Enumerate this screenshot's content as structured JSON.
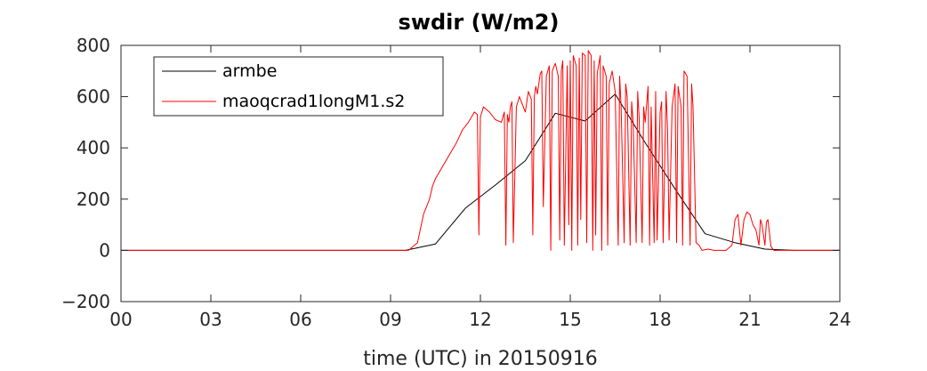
{
  "chart_data": {
    "type": "line",
    "title": "swdir  (W/m2)",
    "xlabel": "time (UTC) in 20150916",
    "ylabel": "",
    "xlim": [
      0,
      24
    ],
    "ylim": [
      -200,
      800
    ],
    "xticks": [
      0,
      3,
      6,
      9,
      12,
      15,
      18,
      21,
      24
    ],
    "xtick_labels": [
      "00",
      "03",
      "06",
      "09",
      "12",
      "15",
      "18",
      "21",
      "24"
    ],
    "yticks": [
      -200,
      0,
      200,
      400,
      600,
      800
    ],
    "ytick_labels": [
      "−200",
      "0",
      "200",
      "400",
      "600",
      "800"
    ],
    "grid": false,
    "legend_position": "top-left",
    "series": [
      {
        "name": "armbe",
        "color": "#000000",
        "x": [
          0,
          9.5,
          10.5,
          11.5,
          12.5,
          13.5,
          14.5,
          15.5,
          16.5,
          17.5,
          18.5,
          19.5,
          20.5,
          21.5,
          22.5,
          23.5,
          24
        ],
        "y": [
          0,
          0,
          25,
          165,
          255,
          350,
          535,
          505,
          610,
          420,
          240,
          65,
          30,
          5,
          0,
          0,
          0
        ]
      },
      {
        "name": "maoqcrad1longM1.s2",
        "color": "#ff0000",
        "x": [
          0,
          9.6,
          9.9,
          10.1,
          10.3,
          10.4,
          10.5,
          10.6,
          10.8,
          11.0,
          11.2,
          11.4,
          11.6,
          11.8,
          11.9,
          11.95,
          12.0,
          12.05,
          12.1,
          12.3,
          12.5,
          12.7,
          12.8,
          12.85,
          12.9,
          12.95,
          13.0,
          13.05,
          13.1,
          13.2,
          13.3,
          13.4,
          13.5,
          13.6,
          13.7,
          13.75,
          13.8,
          13.85,
          13.9,
          14.0,
          14.05,
          14.1,
          14.2,
          14.3,
          14.35,
          14.4,
          14.5,
          14.6,
          14.65,
          14.7,
          14.75,
          14.8,
          14.9,
          14.95,
          15.0,
          15.05,
          15.1,
          15.2,
          15.25,
          15.3,
          15.35,
          15.4,
          15.5,
          15.55,
          15.6,
          15.7,
          15.75,
          15.8,
          15.85,
          15.9,
          16.0,
          16.05,
          16.1,
          16.2,
          16.25,
          16.3,
          16.4,
          16.5,
          16.6,
          16.65,
          16.7,
          16.8,
          16.85,
          16.9,
          17.0,
          17.05,
          17.1,
          17.2,
          17.25,
          17.3,
          17.4,
          17.45,
          17.5,
          17.6,
          17.65,
          17.7,
          17.8,
          17.85,
          17.9,
          18.0,
          18.05,
          18.1,
          18.2,
          18.25,
          18.3,
          18.4,
          18.5,
          18.55,
          18.6,
          18.7,
          18.75,
          18.8,
          18.9,
          19.0,
          19.05,
          19.1,
          19.2,
          19.3,
          19.4,
          19.6,
          19.8,
          20.0,
          20.2,
          20.4,
          20.5,
          20.6,
          20.7,
          20.8,
          20.9,
          21.0,
          21.1,
          21.2,
          21.3,
          21.35,
          21.4,
          21.5,
          21.55,
          21.6,
          21.7,
          21.8,
          22.0,
          23.0,
          24
        ],
        "y": [
          0,
          0,
          30,
          140,
          200,
          250,
          280,
          300,
          340,
          380,
          420,
          470,
          500,
          540,
          530,
          60,
          520,
          540,
          560,
          540,
          510,
          500,
          540,
          20,
          530,
          500,
          560,
          580,
          30,
          560,
          600,
          570,
          540,
          620,
          590,
          60,
          600,
          640,
          610,
          690,
          700,
          170,
          680,
          720,
          0,
          700,
          730,
          680,
          40,
          700,
          740,
          20,
          720,
          100,
          740,
          0,
          760,
          720,
          20,
          750,
          120,
          770,
          760,
          30,
          780,
          760,
          0,
          740,
          60,
          690,
          760,
          0,
          720,
          680,
          20,
          650,
          700,
          620,
          20,
          680,
          560,
          30,
          650,
          600,
          20,
          580,
          500,
          30,
          620,
          520,
          30,
          560,
          500,
          640,
          20,
          560,
          30,
          620,
          40,
          540,
          580,
          30,
          620,
          470,
          40,
          560,
          650,
          30,
          640,
          560,
          20,
          700,
          680,
          20,
          650,
          560,
          30,
          20,
          0,
          5,
          0,
          0,
          0,
          20,
          120,
          140,
          20,
          120,
          150,
          140,
          100,
          80,
          20,
          120,
          100,
          20,
          110,
          120,
          15,
          0,
          0,
          0,
          0
        ]
      }
    ]
  }
}
